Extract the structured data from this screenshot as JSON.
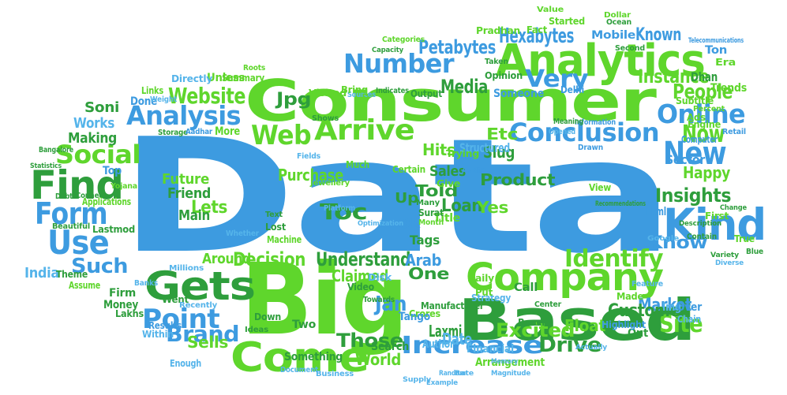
{
  "colors": {
    "blue": "#3d9be0",
    "green": "#5fd62c",
    "dark_green": "#2e9e3c",
    "light_blue": "#55b4ea"
  },
  "words": [
    "Data",
    "Big",
    "Consumer",
    "Analytics",
    "Based",
    "Company",
    "Come",
    "Gets",
    "Find",
    "Kind",
    "Use",
    "Form",
    "Point",
    "Number",
    "Online",
    "Conclusion",
    "Arrive",
    "Analysis",
    "Website",
    "Web",
    "Social",
    "Understand",
    "Identify",
    "Decision",
    "Insights",
    "People",
    "Instance",
    "Very",
    "Known",
    "Petabytes",
    "Hexabytes",
    "Media",
    "Happy",
    "New",
    "Now",
    "Increase",
    "Drive",
    "Brand",
    "Site",
    "Market",
    "Customer",
    "Excited",
    "Laxmi",
    "Jan",
    "Date",
    "World",
    "Those",
    "Sells",
    "Such",
    "Toc",
    "Lets",
    "Loan",
    "Told",
    "Yes",
    "Product",
    "Purchase",
    "Future",
    "Friend",
    "Main",
    "Claimed",
    "Hits",
    "Etc",
    "Slug",
    "Sales",
    "Structured",
    "Jpg",
    "Soni",
    "Works",
    "Making",
    "India",
    "Around",
    "Arab",
    "One",
    "Up",
    "Ok",
    "Tags",
    "Title",
    "Img",
    "Know",
    "Html",
    "True",
    "Float",
    "Out",
    "Sector",
    "Top",
    "Debt",
    "Jewellery",
    "Crores",
    "Manufacturer",
    "Tango",
    "Search",
    "Author",
    "Financial",
    "Arrangement",
    "Two",
    "Down",
    "Ideas",
    "Towards",
    "Video",
    "Disk",
    "Strategy",
    "Reach",
    "Made",
    "Feature",
    "Center",
    "Over",
    "Chain",
    "Daily",
    "Call",
    "Put",
    "Something",
    "Document",
    "Enough",
    "Business",
    "Supply",
    "Example",
    "Random",
    "Memory",
    "Rate",
    "Magnitude",
    "Within",
    "Results",
    "Lakhs",
    "Money",
    "Firm",
    "Went",
    "Recently",
    "Banks",
    "Assume",
    "Theme",
    "Beautiful",
    "Lastmod",
    "Connect",
    "Applications",
    "Yojana",
    "Bangalore",
    "Statistics",
    "Storage",
    "Aadhar",
    "More",
    "Unless",
    "Done",
    "Links",
    "Weight",
    "Directly",
    "Summary",
    "Roots",
    "Capacity",
    "Categories",
    "Pradhan",
    "Fact",
    "Started",
    "Value",
    "Mobile",
    "Dollar",
    "Ocean",
    "Taken",
    "Opinion",
    "Shows",
    "Visited",
    "Sources",
    "Indicates",
    "Someone",
    "Bring",
    "Output",
    "Delhi",
    "Platform",
    "Text",
    "Lost",
    "Whether",
    "Machine",
    "Millions",
    "Month",
    "Surat",
    "Many",
    "Optimization",
    "Much",
    "Certain",
    "Give",
    "Audio",
    "Trying",
    "Fields",
    "Recommendations",
    "Engine",
    "Retail",
    "Computer",
    "Drawn",
    "Information",
    "Meaning",
    "Opened",
    "Era",
    "Trends",
    "Ton",
    "Dhan",
    "Subtitle",
    "Percent",
    "Ads",
    "Second",
    "Telecommunications",
    "Google",
    "Description",
    "Contain",
    "First",
    "Blue",
    "Variety",
    "Diverse",
    "Highlight",
    "Actually",
    "View",
    "Change"
  ]
}
